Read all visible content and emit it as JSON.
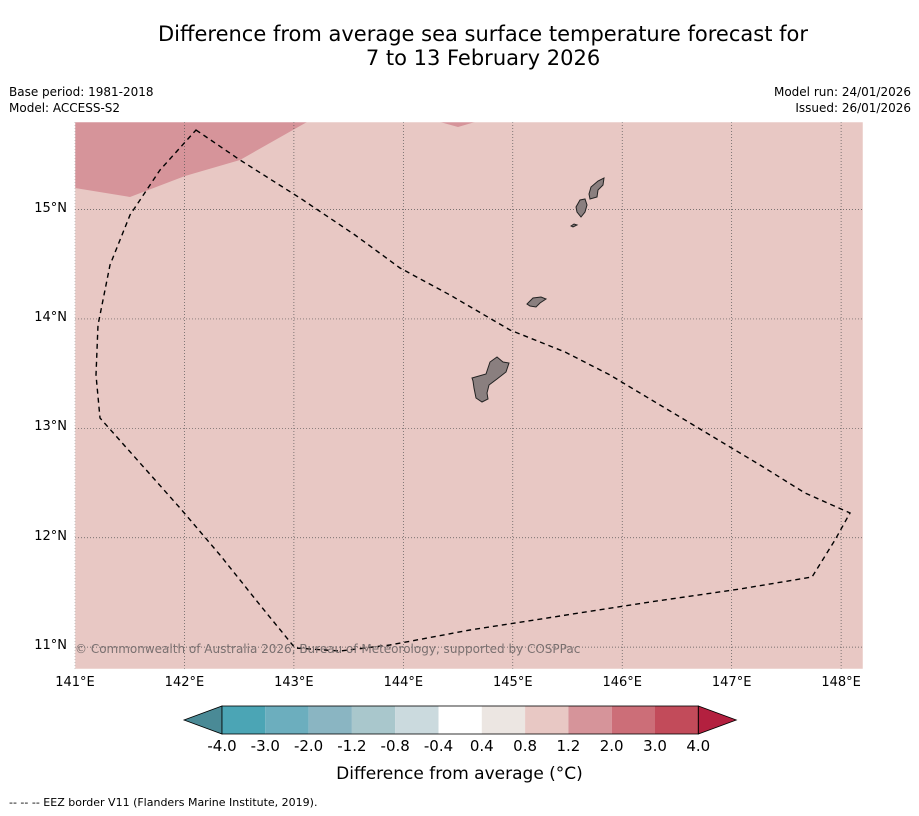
{
  "title_line1": "Difference from average sea surface temperature forecast for",
  "title_line2": "7 to 13 February 2026",
  "base_period": "Base period: 1981-2018",
  "model": "Model: ACCESS-S2",
  "model_run": "Model run: 24/01/2026",
  "issued": "Issued: 26/01/2026",
  "copyright": "© Commonwealth of Australia 2026, Bureau of Meteorology, supported by COSPPac",
  "colorbar_title": "Difference from average (°C)",
  "footnote": "-- -- -- EEZ border V11 (Flanders Marine Institute, 2019).",
  "colors": {
    "background_anomaly": "#e8c8c4",
    "warm_patch": "#d6949a",
    "land": "#8a7f7f",
    "eez_border": "#000000"
  },
  "chart_data": {
    "type": "map",
    "lon_range": [
      141.0,
      148.2
    ],
    "lat_range": [
      10.8,
      15.8
    ],
    "lat_ticks": [
      "15°N",
      "14°N",
      "13°N",
      "12°N",
      "11°N"
    ],
    "lon_ticks": [
      "141°E",
      "142°E",
      "143°E",
      "144°E",
      "145°E",
      "146°E",
      "147°E",
      "148°E"
    ],
    "lat_values": [
      15,
      14,
      13,
      12,
      11
    ],
    "lon_values": [
      141,
      142,
      143,
      144,
      145,
      146,
      147,
      148
    ],
    "dominant_anomaly_range_c": [
      0.8,
      1.2
    ],
    "warm_patch_anomaly_range_c": [
      1.2,
      2.0
    ],
    "colorbar": {
      "tick_labels": [
        "-4.0",
        "-3.0",
        "-2.0",
        "-1.2",
        "-0.8",
        "-0.4",
        "0.4",
        "0.8",
        "1.2",
        "2.0",
        "3.0",
        "4.0"
      ],
      "colors": [
        "#4a8a96",
        "#4ba5b5",
        "#6caebe",
        "#8ab5c2",
        "#a9c7cc",
        "#cbdade",
        "#ffffff",
        "#ece6e2",
        "#e8c8c4",
        "#d6949a",
        "#cc6e78",
        "#c24b5a",
        "#b3203f"
      ]
    }
  }
}
